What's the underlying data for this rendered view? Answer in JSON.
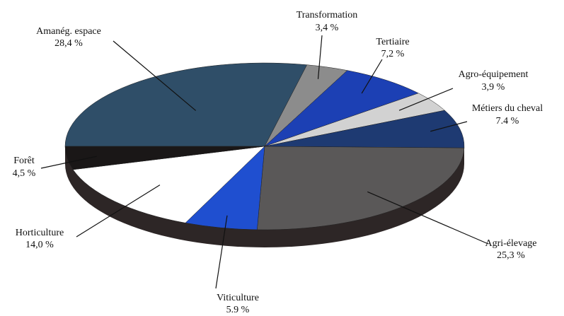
{
  "chart_data": {
    "type": "pie",
    "categories": [
      "Amanég. espace",
      "Transformation",
      "Tertiaire",
      "Agro-équipement",
      "Métiers du cheval",
      "Agri-élevage",
      "Viticulture",
      "Horticulture",
      "Forêt"
    ],
    "values": [
      28.4,
      3.4,
      7.2,
      3.9,
      7.4,
      25.3,
      5.9,
      14.0,
      4.5
    ],
    "value_labels": [
      "28,4 %",
      "3,4 %",
      "7,2 %",
      "3,9 %",
      "7.4 %",
      "25,3 %",
      "5.9 %",
      "14,0 %",
      "4,5 %"
    ],
    "colors": [
      "#2f4e68",
      "#8c8c8c",
      "#1c40b4",
      "#d2d2d2",
      "#1e3a72",
      "#5a5858",
      "#1f4fd0",
      "#ffffff",
      "#1a1717"
    ]
  }
}
